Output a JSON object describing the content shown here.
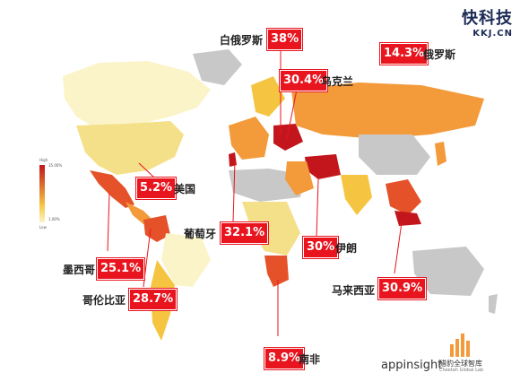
{
  "watermark": {
    "logo_text": "快科技",
    "domain": "KKJ.CN"
  },
  "legend": {
    "high_label": "High",
    "high_value": "35.00%",
    "mid_value": "1.00%",
    "low_label": "Low",
    "colors": [
      "#c2161c",
      "#e5522a",
      "#f39a3b",
      "#f5c542",
      "#fbf4c8"
    ]
  },
  "callouts": [
    {
      "id": "belarus",
      "name": "白俄罗斯",
      "value": "38%"
    },
    {
      "id": "russia",
      "name": "俄罗斯",
      "value": "14.3%"
    },
    {
      "id": "ukraine",
      "name": "乌克兰",
      "value": "30.4%"
    },
    {
      "id": "usa",
      "name": "美国",
      "value": "5.2%"
    },
    {
      "id": "portugal",
      "name": "葡萄牙",
      "value": "32.1%"
    },
    {
      "id": "iran",
      "name": "伊朗",
      "value": "30%"
    },
    {
      "id": "mexico",
      "name": "墨西哥",
      "value": "25.1%"
    },
    {
      "id": "colombia",
      "name": "哥伦比亚",
      "value": "28.7%"
    },
    {
      "id": "malaysia",
      "name": "马来西亚",
      "value": "30.9%"
    },
    {
      "id": "south_africa",
      "name": "南非",
      "value": "8.9%"
    }
  ],
  "footer": {
    "appinsight": "appinsight",
    "cheetah_cn": "猎豹全球智库",
    "cheetah_en": "Cheetah Global Lab"
  },
  "colors": {
    "callout_red": "#e8141e",
    "no_data_gray": "#c8c8c8"
  }
}
